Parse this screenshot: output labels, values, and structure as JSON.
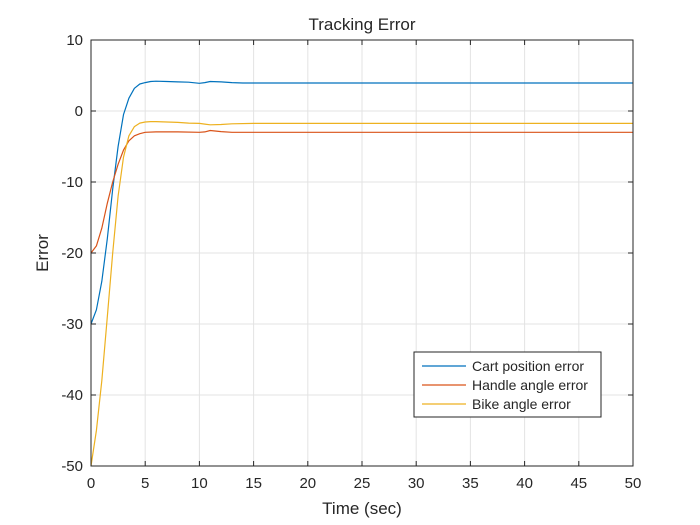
{
  "chart_data": {
    "type": "line",
    "title": "Tracking Error",
    "xlabel": "Time (sec)",
    "ylabel": "Error",
    "xlim": [
      0,
      50
    ],
    "ylim": [
      -50,
      10
    ],
    "xticks": [
      0,
      5,
      10,
      15,
      20,
      25,
      30,
      35,
      40,
      45,
      50
    ],
    "yticks": [
      10,
      0,
      -10,
      -20,
      -30,
      -40,
      -50
    ],
    "grid": true,
    "legend_position": "lower-right",
    "series": [
      {
        "name": "Cart position error",
        "color": "#0072BD",
        "x": [
          0,
          0.5,
          1,
          1.5,
          2,
          2.5,
          3,
          3.5,
          4,
          4.5,
          5,
          5.5,
          6,
          7,
          8,
          9,
          10,
          10.5,
          11,
          12,
          13,
          14,
          15,
          20,
          30,
          40,
          50
        ],
        "y": [
          -30,
          -28,
          -24,
          -18,
          -11,
          -5,
          -0.5,
          1.8,
          3.2,
          3.8,
          4.0,
          4.15,
          4.2,
          4.15,
          4.1,
          4.05,
          3.9,
          4.0,
          4.15,
          4.1,
          4.0,
          3.95,
          3.95,
          3.95,
          3.95,
          3.95,
          3.95
        ]
      },
      {
        "name": "Handle angle error",
        "color": "#D95319",
        "x": [
          0,
          0.5,
          1,
          1.5,
          2,
          2.5,
          3,
          3.5,
          4,
          4.5,
          5,
          6,
          8,
          10,
          10.5,
          11,
          12,
          13,
          15,
          20,
          30,
          40,
          50
        ],
        "y": [
          -20,
          -19,
          -16.5,
          -13,
          -10,
          -7.5,
          -5.5,
          -4.2,
          -3.5,
          -3.2,
          -3.0,
          -2.95,
          -2.95,
          -3.0,
          -2.95,
          -2.75,
          -2.9,
          -3.0,
          -3.0,
          -3.0,
          -3.0,
          -3.0,
          -3.0
        ]
      },
      {
        "name": "Bike angle error",
        "color": "#EDB120",
        "x": [
          0,
          0.5,
          1,
          1.5,
          2,
          2.5,
          3,
          3.5,
          4,
          4.5,
          5,
          5.5,
          6,
          7,
          8,
          9,
          10,
          10.5,
          11,
          12,
          13,
          15,
          20,
          30,
          40,
          50
        ],
        "y": [
          -50,
          -45,
          -38,
          -29,
          -20,
          -12,
          -6.5,
          -3.5,
          -2.2,
          -1.7,
          -1.55,
          -1.5,
          -1.5,
          -1.55,
          -1.6,
          -1.7,
          -1.75,
          -1.85,
          -1.95,
          -1.9,
          -1.8,
          -1.75,
          -1.75,
          -1.75,
          -1.75,
          -1.75
        ]
      }
    ]
  }
}
